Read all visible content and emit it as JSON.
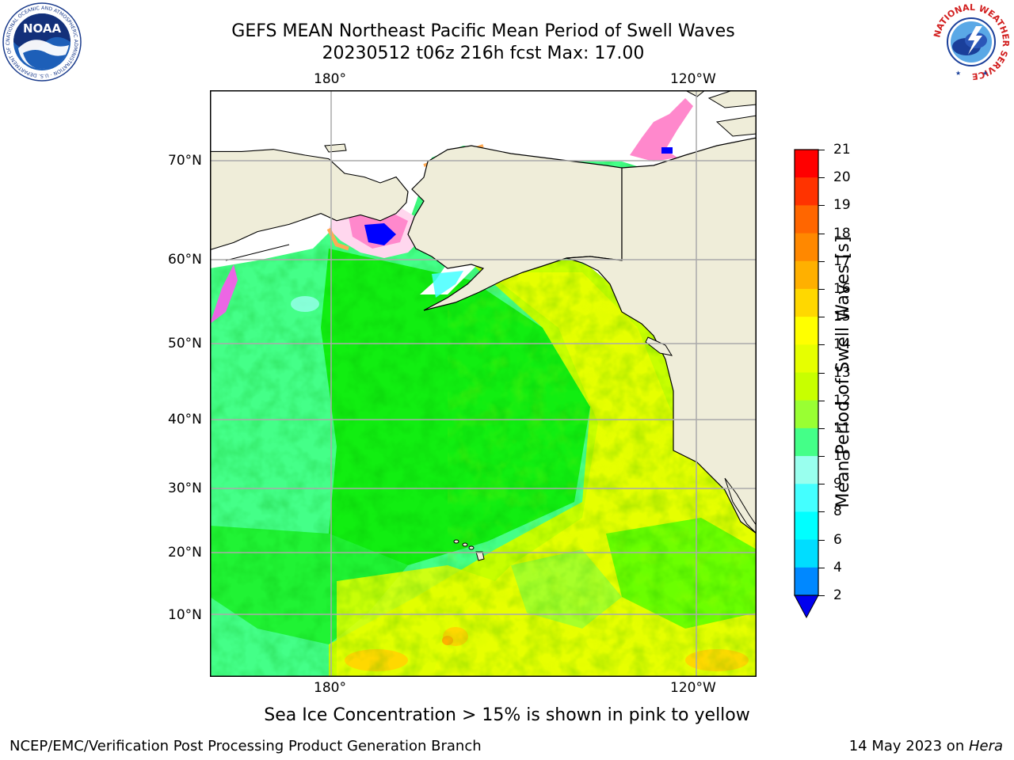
{
  "title": {
    "line1": "GEFS MEAN Northeast Pacific Mean Period of Swell Waves",
    "line2": "20230512 t06z 216h fcst   Max: 17.00"
  },
  "map": {
    "lon_labels": [
      "180°",
      "120°W"
    ],
    "lat_labels": [
      "70°N",
      "60°N",
      "50°N",
      "40°N",
      "30°N",
      "20°N",
      "10°N"
    ]
  },
  "colorbar": {
    "label": "Mean Period of Swell Waves [s]",
    "ticks": [
      "21",
      "20",
      "19",
      "18",
      "17",
      "16",
      "15",
      "14",
      "13",
      "12",
      "11",
      "10",
      "9",
      "8",
      "6",
      "4",
      "2"
    ],
    "colors": [
      "#ff0000",
      "#ff3300",
      "#ff6600",
      "#ff8800",
      "#ffb000",
      "#ffd800",
      "#ffff00",
      "#e6ff00",
      "#c8ff00",
      "#99ff33",
      "#55ff00",
      "#11ee11",
      "#44ff88",
      "#99ffee",
      "#44ffff",
      "#00ffff",
      "#00ddff",
      "#0088ff",
      "#0000ff"
    ],
    "extend_color": "#0000ee"
  },
  "note": "Sea Ice Concentration > 15% is shown in pink to yellow",
  "footer": {
    "left": "NCEP/EMC/Verification Post Processing Product Generation Branch",
    "date": "14 May 2023 on ",
    "machine": "Hera"
  },
  "logos": {
    "noaa": "NOAA",
    "noaa_ring": "NATIONAL OCEANIC AND ATMOSPHERIC ADMINISTRATION · U.S. DEPARTMENT OF COMMERCE",
    "nws_ring": "NATIONAL WEATHER SERVICE"
  }
}
